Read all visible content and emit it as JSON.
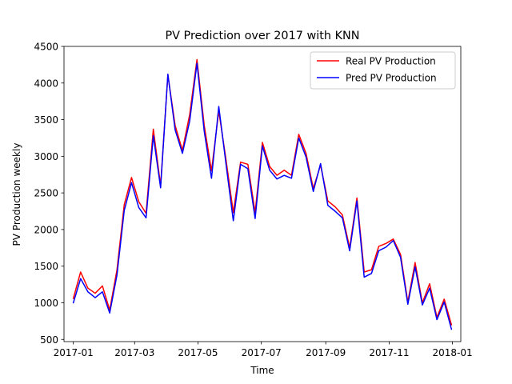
{
  "chart_data": {
    "type": "line",
    "title": "PV Prediction over 2017 with KNN",
    "xlabel": "Time",
    "ylabel": "PV Production weekly",
    "x": [
      "2017-01-01",
      "2017-01-08",
      "2017-01-15",
      "2017-01-22",
      "2017-01-29",
      "2017-02-05",
      "2017-02-12",
      "2017-02-19",
      "2017-02-26",
      "2017-03-05",
      "2017-03-12",
      "2017-03-19",
      "2017-03-26",
      "2017-04-02",
      "2017-04-09",
      "2017-04-16",
      "2017-04-23",
      "2017-04-30",
      "2017-05-07",
      "2017-05-14",
      "2017-05-21",
      "2017-05-28",
      "2017-06-04",
      "2017-06-11",
      "2017-06-18",
      "2017-06-25",
      "2017-07-02",
      "2017-07-09",
      "2017-07-16",
      "2017-07-23",
      "2017-07-30",
      "2017-08-06",
      "2017-08-13",
      "2017-08-20",
      "2017-08-27",
      "2017-09-03",
      "2017-09-10",
      "2017-09-17",
      "2017-09-24",
      "2017-10-01",
      "2017-10-08",
      "2017-10-15",
      "2017-10-22",
      "2017-10-29",
      "2017-11-05",
      "2017-11-12",
      "2017-11-19",
      "2017-11-26",
      "2017-12-03",
      "2017-12-10",
      "2017-12-17",
      "2017-12-24",
      "2017-12-31"
    ],
    "series": [
      {
        "name": "Real PV Production",
        "color": "#ff0000",
        "values": [
          1060,
          1420,
          1200,
          1130,
          1230,
          900,
          1450,
          2340,
          2710,
          2380,
          2220,
          3370,
          2600,
          4110,
          3420,
          3080,
          3570,
          4320,
          3420,
          2800,
          3620,
          2950,
          2230,
          2920,
          2890,
          2230,
          3190,
          2860,
          2740,
          2810,
          2740,
          3300,
          3040,
          2560,
          2880,
          2390,
          2310,
          2200,
          1750,
          2430,
          1420,
          1450,
          1770,
          1810,
          1870,
          1660,
          1010,
          1550,
          1000,
          1260,
          800,
          1050,
          700
        ]
      },
      {
        "name": "Pred PV Production",
        "color": "#0000ff",
        "values": [
          1000,
          1330,
          1150,
          1070,
          1150,
          860,
          1380,
          2260,
          2640,
          2300,
          2160,
          3280,
          2570,
          4120,
          3360,
          3040,
          3480,
          4270,
          3340,
          2700,
          3680,
          2890,
          2120,
          2890,
          2830,
          2150,
          3140,
          2810,
          2690,
          2740,
          2700,
          3250,
          2990,
          2520,
          2900,
          2330,
          2250,
          2160,
          1710,
          2390,
          1350,
          1400,
          1710,
          1760,
          1850,
          1620,
          980,
          1490,
          970,
          1200,
          770,
          1010,
          640
        ]
      }
    ],
    "xticks": [
      "2017-01",
      "2017-03",
      "2017-05",
      "2017-07",
      "2017-09",
      "2017-11",
      "2018-01"
    ],
    "yticks": [
      "500",
      "1000",
      "1500",
      "2000",
      "2500",
      "3000",
      "3500",
      "4000",
      "4500"
    ],
    "xlim": [
      "2016-12-23",
      "2018-01-09"
    ],
    "ylim": [
      470,
      4500
    ],
    "legend_position": "top-right",
    "grid": false
  }
}
